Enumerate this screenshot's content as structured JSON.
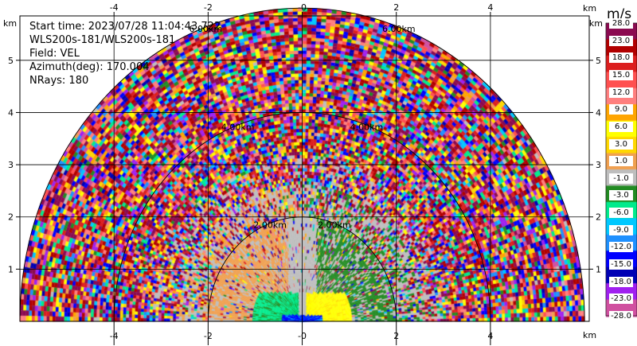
{
  "panel": {
    "info": {
      "start_time": "Start time: 2023/07/28 11:04:43.722",
      "instrument": "WLS200s-181/WLS200s-181",
      "field": "Field: VEL",
      "azimuth": "Azimuth(deg): 170.004",
      "nrays": "NRays: 180"
    },
    "x_ticks": [
      "-4",
      "-2",
      "-0",
      "2",
      "4"
    ],
    "x_tick_values": [
      -4,
      -2,
      0,
      2,
      4
    ],
    "y_ticks": [
      "1",
      "2",
      "3",
      "4",
      "5"
    ],
    "y_tick_values": [
      1,
      2,
      3,
      4,
      5
    ],
    "axis_unit": "km",
    "x_range_km": [
      -6.0,
      6.1
    ],
    "y_range_km": [
      0,
      5.85
    ],
    "max_range_km": 6.0,
    "range_rings": [
      {
        "km": 2,
        "label": "2.00km"
      },
      {
        "km": 4,
        "label": "4.00km"
      },
      {
        "km": 6,
        "label": "6.00km"
      }
    ]
  },
  "colorbar": {
    "unit": "m/s",
    "bounds": [
      "28.0",
      "23.0",
      "18.0",
      "15.0",
      "12.0",
      "9.0",
      "6.0",
      "3.0",
      "1.0",
      "-1.0",
      "-3.0",
      "-6.0",
      "-9.0",
      "-12.0",
      "-15.0",
      "-18.0",
      "-23.0",
      "-28.0"
    ],
    "colors": [
      "#8b0a50",
      "#b20000",
      "#dc1e1e",
      "#ff5050",
      "#ff7f7f",
      "#ffa500",
      "#ffff00",
      "#ffd700",
      "#f0a050",
      "#bebebe",
      "#228b22",
      "#00eb8c",
      "#00c8ff",
      "#1e90ff",
      "#0000ff",
      "#0000b4",
      "#a020f0",
      "#d050a0"
    ]
  }
}
